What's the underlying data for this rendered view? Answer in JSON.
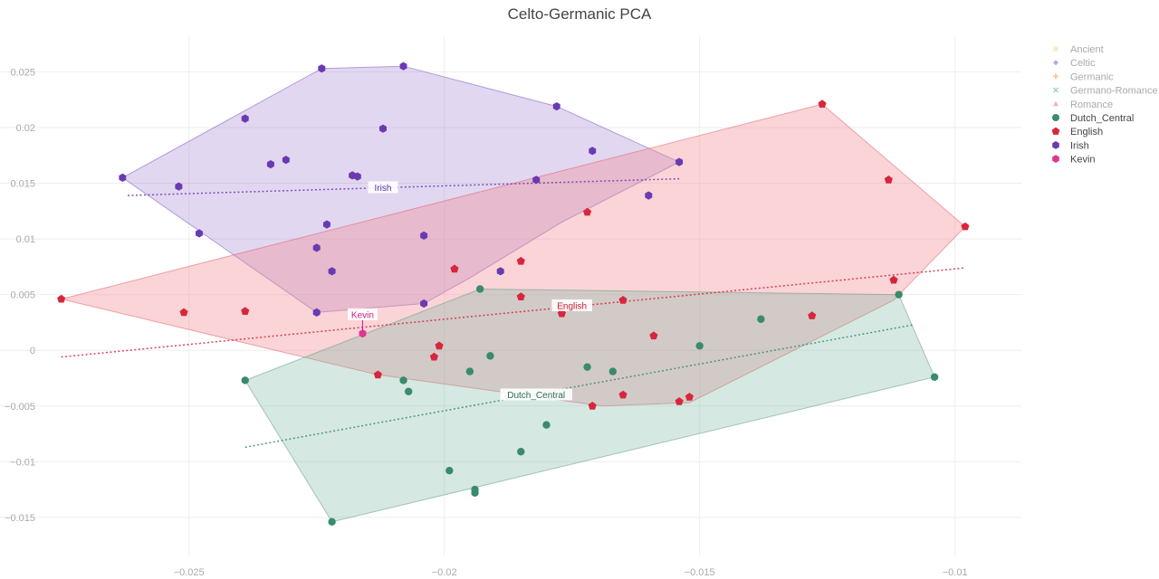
{
  "chart_data": {
    "type": "scatter",
    "title": "Celto-Germanic PCA",
    "xlabel": "",
    "ylabel": "",
    "xlim": [
      -0.0287,
      -0.0087
    ],
    "ylim": [
      -0.0185,
      0.0282
    ],
    "x_ticks": [
      -0.025,
      -0.02,
      -0.015,
      -0.01
    ],
    "x_tick_labels": [
      "−0.025",
      "−0.02",
      "−0.015",
      "−0.01"
    ],
    "y_ticks": [
      0.025,
      0.02,
      0.015,
      0.01,
      0.005,
      0,
      -0.005,
      -0.01,
      -0.015
    ],
    "y_tick_labels": [
      "0.025",
      "0.02",
      "0.015",
      "0.01",
      "0.005",
      "0",
      "−0.005",
      "−0.01",
      "−0.015"
    ],
    "grid": true,
    "legend_position": "top-right",
    "legend": [
      {
        "name": "Ancient",
        "color": "#f2d16b",
        "symbol": "square",
        "active": false
      },
      {
        "name": "Celtic",
        "color": "#6a3ab2",
        "symbol": "diamond",
        "active": false
      },
      {
        "name": "Germanic",
        "color": "#e8862a",
        "symbol": "cross",
        "active": false
      },
      {
        "name": "Germano-Romance",
        "color": "#2ca58d",
        "symbol": "x",
        "active": false
      },
      {
        "name": "Romance",
        "color": "#e8565e",
        "symbol": "triangle",
        "active": false
      },
      {
        "name": "Dutch_Central",
        "color": "#3a8a6e",
        "symbol": "circle",
        "active": true
      },
      {
        "name": "English",
        "color": "#d7263d",
        "symbol": "pentagon",
        "active": true
      },
      {
        "name": "Irish",
        "color": "#6a3ab2",
        "symbol": "hexagon",
        "active": true
      },
      {
        "name": "Kevin",
        "color": "#e0368f",
        "symbol": "hexagon",
        "active": true
      }
    ],
    "series": [
      {
        "name": "Irish",
        "color": "#6a3ab2",
        "marker": "hexagon",
        "fill": "rgba(150,110,205,0.28)",
        "edge": "rgba(130,90,190,0.55)",
        "hull": [
          [
            -0.0263,
            0.0155
          ],
          [
            -0.0224,
            0.0253
          ],
          [
            -0.0208,
            0.0255
          ],
          [
            -0.0178,
            0.0219
          ],
          [
            -0.0154,
            0.0169
          ],
          [
            -0.0177,
            0.0115
          ],
          [
            -0.0195,
            0.0065
          ],
          [
            -0.0204,
            0.0042
          ],
          [
            -0.0225,
            0.0034
          ]
        ],
        "trend": [
          [
            -0.0262,
            0.0139
          ],
          [
            -0.0154,
            0.0154
          ]
        ],
        "x": [
          -0.0263,
          -0.0224,
          -0.0208,
          -0.0178,
          -0.0154,
          -0.0239,
          -0.0212,
          -0.0234,
          -0.0231,
          -0.0218,
          -0.0217,
          -0.0252,
          -0.0171,
          -0.0182,
          -0.016,
          -0.0223,
          -0.0225,
          -0.0248,
          -0.0222,
          -0.0204,
          -0.0189,
          -0.0204,
          -0.0225
        ],
        "y": [
          0.0155,
          0.0253,
          0.0255,
          0.0219,
          0.0169,
          0.0208,
          0.0199,
          0.0167,
          0.0171,
          0.0157,
          0.0156,
          0.0147,
          0.0179,
          0.0153,
          0.0139,
          0.0113,
          0.0092,
          0.0105,
          0.0071,
          0.0103,
          0.0071,
          0.0042,
          0.0034
        ]
      },
      {
        "name": "English",
        "color": "#d7263d",
        "marker": "pentagon",
        "fill": "rgba(240,135,145,0.36)",
        "edge": "rgba(225,100,110,0.55)",
        "hull": [
          [
            -0.0275,
            0.0046
          ],
          [
            -0.0126,
            0.0221
          ],
          [
            -0.0098,
            0.0111
          ],
          [
            -0.0112,
            0.0045
          ],
          [
            -0.0152,
            -0.0047
          ],
          [
            -0.0169,
            -0.005
          ],
          [
            -0.0213,
            -0.0022
          ]
        ],
        "trend": [
          [
            -0.0275,
            -0.0006
          ],
          [
            -0.0098,
            0.0074
          ]
        ],
        "x": [
          -0.0275,
          -0.0126,
          -0.0098,
          -0.0113,
          -0.0112,
          -0.0251,
          -0.0239,
          -0.0172,
          -0.0185,
          -0.0198,
          -0.0185,
          -0.0177,
          -0.0165,
          -0.0177,
          -0.0128,
          -0.0159,
          -0.0201,
          -0.0202,
          -0.0213,
          -0.0165,
          -0.0171,
          -0.0152,
          -0.0154
        ],
        "y": [
          0.0046,
          0.0221,
          0.0111,
          0.0153,
          0.0063,
          0.0034,
          0.0035,
          0.0124,
          0.008,
          0.0073,
          0.0048,
          0.0039,
          0.0045,
          0.0033,
          0.0031,
          0.0013,
          0.0004,
          -0.0006,
          -0.0022,
          -0.004,
          -0.005,
          -0.0042,
          -0.0046
        ]
      },
      {
        "name": "Dutch_Central",
        "color": "#3a8a6e",
        "marker": "circle",
        "fill": "rgba(120,180,160,0.30)",
        "edge": "rgba(90,150,130,0.5)",
        "hull": [
          [
            -0.0239,
            -0.0027
          ],
          [
            -0.0193,
            0.0055
          ],
          [
            -0.0111,
            0.005
          ],
          [
            -0.0104,
            -0.0024
          ],
          [
            -0.0222,
            -0.0154
          ]
        ],
        "trend": [
          [
            -0.0239,
            -0.0087
          ],
          [
            -0.0108,
            0.0023
          ]
        ],
        "x": [
          -0.0239,
          -0.0193,
          -0.0111,
          -0.0104,
          -0.0222,
          -0.0138,
          -0.015,
          -0.0191,
          -0.0195,
          -0.0208,
          -0.0207,
          -0.0172,
          -0.0167,
          -0.018,
          -0.0185,
          -0.0199,
          -0.0194,
          -0.0194
        ],
        "y": [
          -0.0027,
          0.0055,
          0.005,
          -0.0024,
          -0.0154,
          0.0028,
          0.0004,
          -0.0005,
          -0.0019,
          -0.0027,
          -0.0037,
          -0.0015,
          -0.0019,
          -0.0067,
          -0.0091,
          -0.0108,
          -0.0125,
          -0.0128
        ]
      },
      {
        "name": "Kevin",
        "color": "#e0368f",
        "marker": "hexagon",
        "x": [
          -0.0216
        ],
        "y": [
          0.0015
        ]
      }
    ],
    "annotations": [
      {
        "text": "Irish",
        "x": -0.0212,
        "y": 0.0146,
        "color": "#5b2ea0"
      },
      {
        "text": "English",
        "x": -0.0175,
        "y": 0.004,
        "color": "#c81e35"
      },
      {
        "text": "Dutch_Central",
        "x": -0.0182,
        "y": -0.004,
        "color": "#2a6e55"
      },
      {
        "text": "Kevin",
        "x": -0.0216,
        "y": 0.0032,
        "color": "#c81e7c",
        "arrow_to": [
          -0.0216,
          0.0017
        ]
      }
    ]
  }
}
